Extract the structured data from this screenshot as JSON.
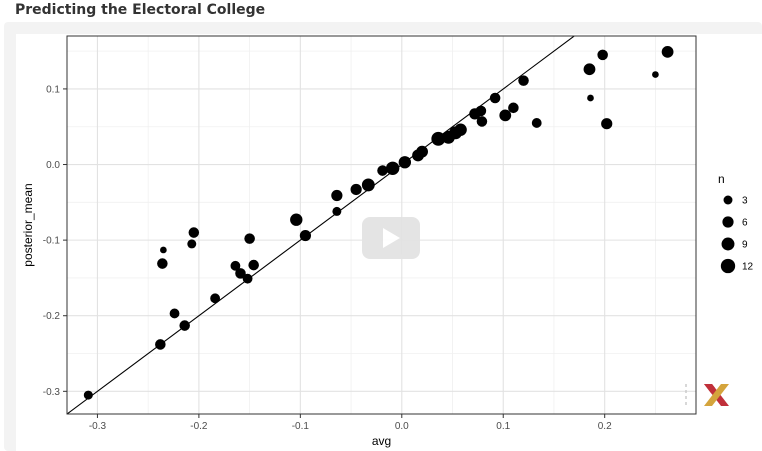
{
  "page": {
    "title": "Predicting the Electoral College"
  },
  "player": {
    "play_icon": "play-icon",
    "logo_icon": "x-logo-icon",
    "logo_colors": [
      "#c0303a",
      "#d4a43c"
    ]
  },
  "chart_data": {
    "type": "scatter",
    "title": "",
    "xlabel": "avg",
    "ylabel": "posterior_mean",
    "xlim": [
      -0.33,
      0.29
    ],
    "ylim": [
      -0.33,
      0.17
    ],
    "x_ticks": [
      -0.3,
      -0.2,
      -0.1,
      0.0,
      0.1,
      0.2
    ],
    "x_tick_labels": [
      "-0.3",
      "-0.2",
      "-0.1",
      "0.0",
      "0.1",
      "0.2"
    ],
    "y_ticks": [
      -0.3,
      -0.2,
      -0.1,
      0.0,
      0.1
    ],
    "y_tick_labels": [
      "-0.3",
      "-0.2",
      "-0.1",
      "0.0",
      "0.1"
    ],
    "grid": true,
    "point_color": "#000000",
    "reference_line": {
      "slope": 1,
      "intercept": 0
    },
    "size_legend": {
      "title": "n",
      "position": "right",
      "values": [
        3,
        6,
        9,
        12
      ],
      "labels": [
        "3",
        "6",
        "9",
        "12"
      ]
    },
    "points": [
      {
        "x": -0.309,
        "y": -0.305,
        "n": 3
      },
      {
        "x": -0.238,
        "y": -0.238,
        "n": 5
      },
      {
        "x": -0.235,
        "y": -0.113,
        "n": 1
      },
      {
        "x": -0.236,
        "y": -0.131,
        "n": 5
      },
      {
        "x": -0.224,
        "y": -0.197,
        "n": 4
      },
      {
        "x": -0.214,
        "y": -0.213,
        "n": 5
      },
      {
        "x": -0.205,
        "y": -0.09,
        "n": 5
      },
      {
        "x": -0.207,
        "y": -0.105,
        "n": 3
      },
      {
        "x": -0.184,
        "y": -0.177,
        "n": 4
      },
      {
        "x": -0.164,
        "y": -0.134,
        "n": 4
      },
      {
        "x": -0.159,
        "y": -0.144,
        "n": 5
      },
      {
        "x": -0.152,
        "y": -0.151,
        "n": 4
      },
      {
        "x": -0.15,
        "y": -0.098,
        "n": 5
      },
      {
        "x": -0.146,
        "y": -0.133,
        "n": 5
      },
      {
        "x": -0.104,
        "y": -0.073,
        "n": 8
      },
      {
        "x": -0.095,
        "y": -0.094,
        "n": 6
      },
      {
        "x": -0.064,
        "y": -0.041,
        "n": 6
      },
      {
        "x": -0.064,
        "y": -0.062,
        "n": 3
      },
      {
        "x": -0.045,
        "y": -0.033,
        "n": 6
      },
      {
        "x": -0.033,
        "y": -0.027,
        "n": 9
      },
      {
        "x": -0.019,
        "y": -0.008,
        "n": 5
      },
      {
        "x": -0.009,
        "y": -0.005,
        "n": 10
      },
      {
        "x": 0.003,
        "y": 0.003,
        "n": 8
      },
      {
        "x": 0.016,
        "y": 0.012,
        "n": 7
      },
      {
        "x": 0.02,
        "y": 0.017,
        "n": 7
      },
      {
        "x": 0.036,
        "y": 0.034,
        "n": 11
      },
      {
        "x": 0.046,
        "y": 0.036,
        "n": 9
      },
      {
        "x": 0.053,
        "y": 0.042,
        "n": 9
      },
      {
        "x": 0.058,
        "y": 0.046,
        "n": 8
      },
      {
        "x": 0.072,
        "y": 0.067,
        "n": 6
      },
      {
        "x": 0.078,
        "y": 0.071,
        "n": 5
      },
      {
        "x": 0.079,
        "y": 0.057,
        "n": 5
      },
      {
        "x": 0.092,
        "y": 0.088,
        "n": 5
      },
      {
        "x": 0.102,
        "y": 0.065,
        "n": 7
      },
      {
        "x": 0.11,
        "y": 0.075,
        "n": 5
      },
      {
        "x": 0.12,
        "y": 0.111,
        "n": 5
      },
      {
        "x": 0.133,
        "y": 0.055,
        "n": 4
      },
      {
        "x": 0.185,
        "y": 0.126,
        "n": 7
      },
      {
        "x": 0.186,
        "y": 0.088,
        "n": 1
      },
      {
        "x": 0.198,
        "y": 0.145,
        "n": 5
      },
      {
        "x": 0.202,
        "y": 0.054,
        "n": 6
      },
      {
        "x": 0.25,
        "y": 0.119,
        "n": 1
      },
      {
        "x": 0.262,
        "y": 0.149,
        "n": 7
      }
    ]
  }
}
